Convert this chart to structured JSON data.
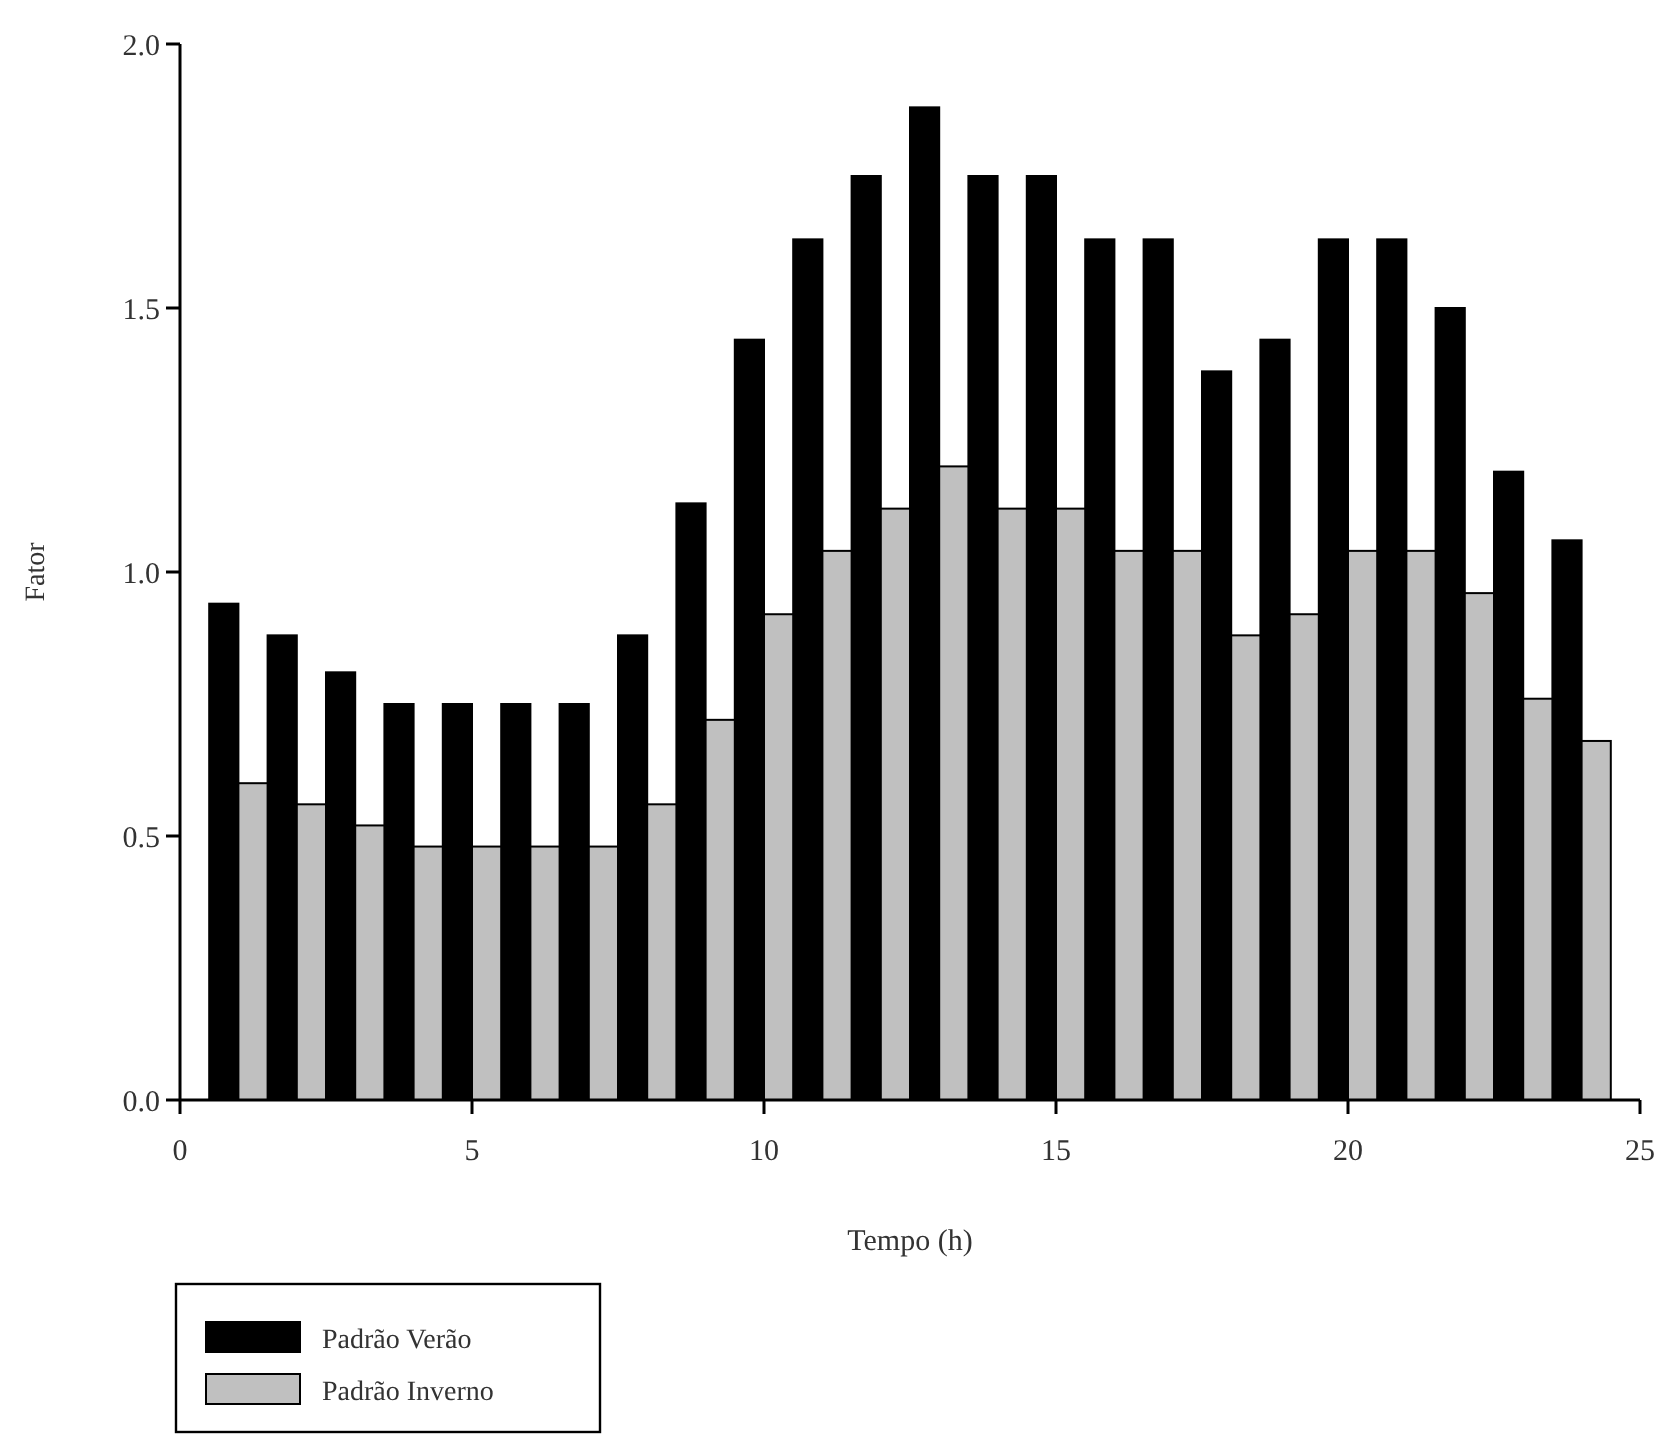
{
  "chart_data": {
    "type": "bar",
    "xlabel": "Tempo (h)",
    "ylabel": "Fator",
    "x": [
      1,
      2,
      3,
      4,
      5,
      6,
      7,
      8,
      9,
      10,
      11,
      12,
      13,
      14,
      15,
      16,
      17,
      18,
      19,
      20,
      21,
      22,
      23,
      24
    ],
    "series": [
      {
        "name": "Padrão Verão",
        "color": "#000000",
        "values": [
          0.94,
          0.88,
          0.81,
          0.75,
          0.75,
          0.75,
          0.75,
          0.88,
          1.13,
          1.44,
          1.63,
          1.75,
          1.88,
          1.75,
          1.75,
          1.63,
          1.63,
          1.38,
          1.44,
          1.63,
          1.63,
          1.5,
          1.19,
          1.06
        ]
      },
      {
        "name": "Padrão Inverno",
        "color": "#c0c0c0",
        "values": [
          0.6,
          0.56,
          0.52,
          0.48,
          0.48,
          0.48,
          0.48,
          0.56,
          0.72,
          0.92,
          1.04,
          1.12,
          1.2,
          1.12,
          1.12,
          1.04,
          1.04,
          0.88,
          0.92,
          1.04,
          1.04,
          0.96,
          0.76,
          0.68
        ]
      }
    ],
    "xlim": [
      0,
      25
    ],
    "xticks": [
      0,
      5,
      10,
      15,
      20,
      25
    ],
    "ylim": [
      0,
      2
    ],
    "yticks": [
      {
        "value": 0,
        "label": "0.0"
      },
      {
        "value": 0.5,
        "label": "0.5"
      },
      {
        "value": 1,
        "label": "1.0"
      },
      {
        "value": 1.5,
        "label": "1.5"
      },
      {
        "value": 2,
        "label": "2.0"
      }
    ],
    "legend": "bottom left"
  }
}
